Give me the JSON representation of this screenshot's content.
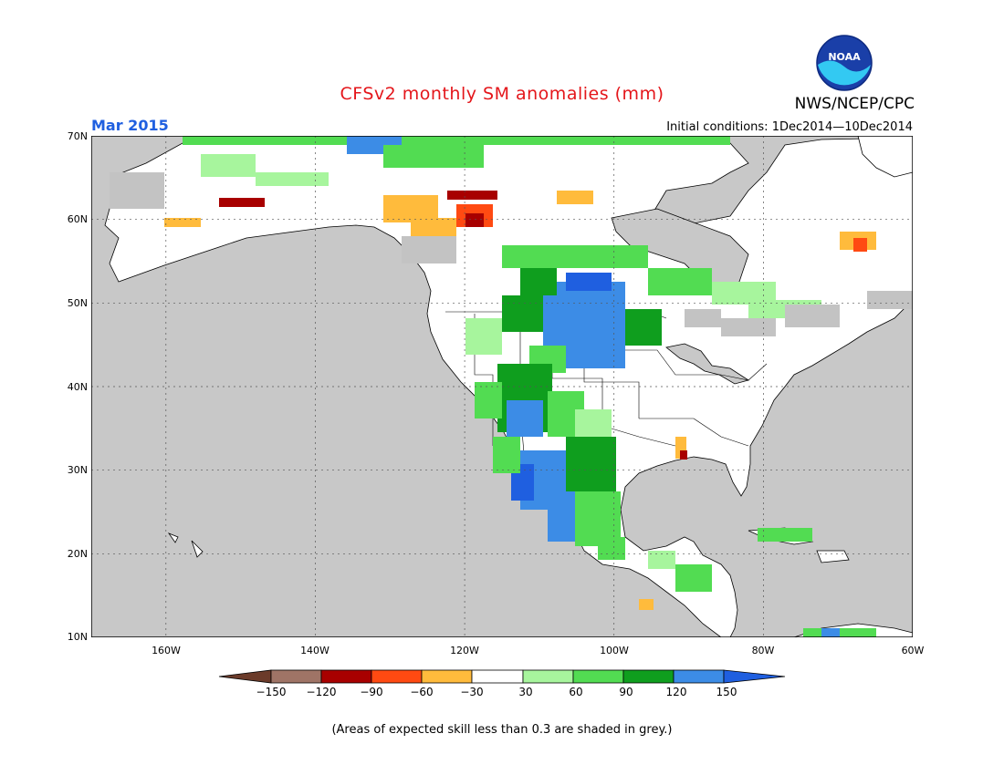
{
  "title": "CFSv2 monthly SM anomalies (mm)",
  "org": "NWS/NCEP/CPC",
  "logo_text": "NOAA",
  "month_label": "Mar 2015",
  "initial_conditions": "Initial conditions: 1Dec2014—10Dec2014",
  "note": "(Areas of expected skill less than 0.3 are shaded in grey.)",
  "map": {
    "lon_range": [
      -170,
      -60
    ],
    "lat_range": [
      10,
      70
    ],
    "lat_ticks": [
      "70N",
      "60N",
      "50N",
      "40N",
      "30N",
      "20N",
      "10N"
    ],
    "lon_ticks": [
      "160W",
      "140W",
      "120W",
      "100W",
      "80W",
      "60W"
    ],
    "ocean_color": "#c8c8c8",
    "land_color": "#ffffff",
    "low_skill_color": "#c3c3c3"
  },
  "colorbar": {
    "labels": [
      "−150",
      "−120",
      "−90",
      "−60",
      "−30",
      "30",
      "60",
      "90",
      "120",
      "150"
    ],
    "colors": [
      "#6b3b2a",
      "#9f7466",
      "#a80000",
      "#ff4a12",
      "#ffbb3c",
      "#ffffff",
      "#a7f59d",
      "#52dc52",
      "#0f9e1e",
      "#3c8ce6",
      "#1f5fe0"
    ]
  },
  "anomaly_regions": [
    {
      "name": "northern plains wet",
      "lon": [
        -110,
        -101
      ],
      "lat": [
        41,
        52
      ],
      "level": "120 to 150"
    },
    {
      "name": "central rockies wet",
      "lon": [
        -113,
        -104
      ],
      "lat": [
        34,
        44
      ],
      "level": "90 to 150"
    },
    {
      "name": "northern mexico wet",
      "lon": [
        -111,
        -103
      ],
      "lat": [
        25,
        33
      ],
      "level": "120 to 150"
    },
    {
      "name": "southern canada moist",
      "lon": [
        -118,
        -95
      ],
      "lat": [
        48,
        56
      ],
      "level": "30 to 90"
    },
    {
      "name": "western canada dry",
      "lon": [
        -125,
        -117
      ],
      "lat": [
        57,
        62
      ],
      "level": "-150 to -60"
    },
    {
      "name": "yukon dry",
      "lon": [
        -140,
        -127
      ],
      "lat": [
        59,
        63
      ],
      "level": "-90 to -30"
    },
    {
      "name": "quebec dry",
      "lon": [
        -72,
        -65
      ],
      "lat": [
        55,
        58
      ],
      "level": "-90 to -30"
    }
  ]
}
